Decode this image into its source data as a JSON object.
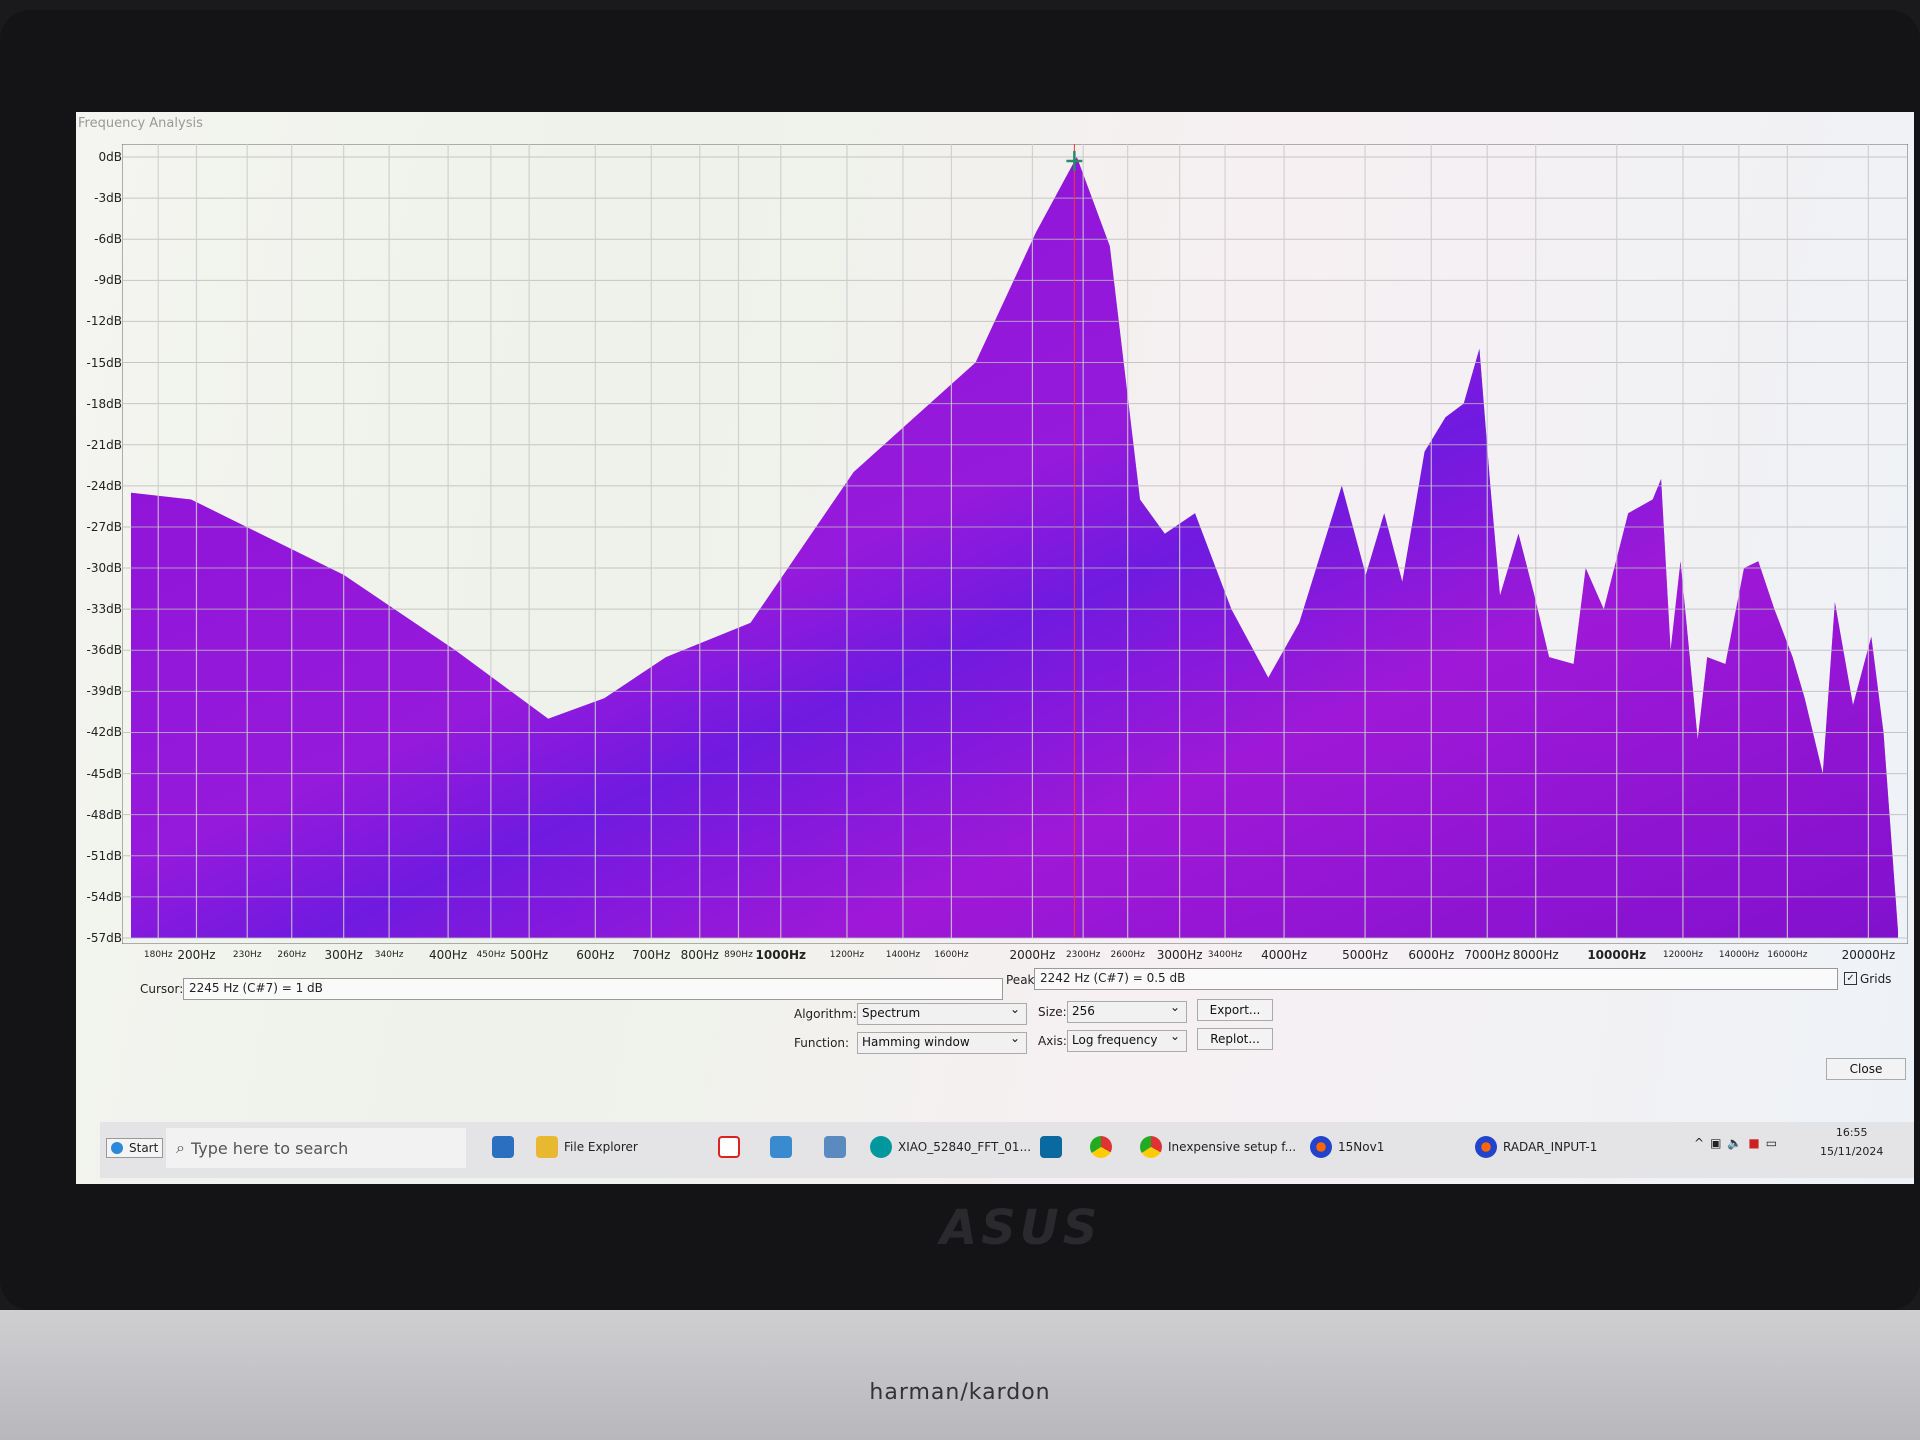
{
  "window": {
    "title": "Frequency Analysis"
  },
  "chart_data": {
    "type": "area",
    "title": "",
    "xlabel": "",
    "ylabel": "",
    "x_scale": "log",
    "xlim": [
      167,
      21700
    ],
    "ylim": [
      -57,
      0
    ],
    "grid": true,
    "fill_color": "#8a12d6",
    "y_ticks": [
      "0dB",
      "-3dB",
      "-6dB",
      "-9dB",
      "-12dB",
      "-15dB",
      "-18dB",
      "-21dB",
      "-24dB",
      "-27dB",
      "-30dB",
      "-33dB",
      "-36dB",
      "-39dB",
      "-42dB",
      "-45dB",
      "-48dB",
      "-51dB",
      "-54dB",
      "-57dB"
    ],
    "x_ticks": [
      {
        "v": 180,
        "l": "180Hz",
        "s": 1
      },
      {
        "v": 200,
        "l": "200Hz"
      },
      {
        "v": 230,
        "l": "230Hz",
        "s": 1
      },
      {
        "v": 260,
        "l": "260Hz",
        "s": 1
      },
      {
        "v": 300,
        "l": "300Hz"
      },
      {
        "v": 340,
        "l": "340Hz",
        "s": 1
      },
      {
        "v": 400,
        "l": "400Hz"
      },
      {
        "v": 450,
        "l": "450Hz",
        "s": 1
      },
      {
        "v": 500,
        "l": "500Hz"
      },
      {
        "v": 600,
        "l": "600Hz"
      },
      {
        "v": 700,
        "l": "700Hz"
      },
      {
        "v": 800,
        "l": "800Hz"
      },
      {
        "v": 890,
        "l": "890Hz",
        "s": 1
      },
      {
        "v": 1000,
        "l": "1000Hz",
        "b": 1
      },
      {
        "v": 1200,
        "l": "1200Hz",
        "s": 1
      },
      {
        "v": 1400,
        "l": "1400Hz",
        "s": 1
      },
      {
        "v": 1600,
        "l": "1600Hz",
        "s": 1
      },
      {
        "v": 2000,
        "l": "2000Hz"
      },
      {
        "v": 2300,
        "l": "2300Hz",
        "s": 1
      },
      {
        "v": 2600,
        "l": "2600Hz",
        "s": 1
      },
      {
        "v": 3000,
        "l": "3000Hz"
      },
      {
        "v": 3400,
        "l": "3400Hz",
        "s": 1
      },
      {
        "v": 4000,
        "l": "4000Hz"
      },
      {
        "v": 5000,
        "l": "5000Hz"
      },
      {
        "v": 6000,
        "l": "6000Hz"
      },
      {
        "v": 7000,
        "l": "7000Hz"
      },
      {
        "v": 8000,
        "l": "8000Hz"
      },
      {
        "v": 10000,
        "l": "10000Hz",
        "b": 1
      },
      {
        "v": 12000,
        "l": "12000Hz",
        "s": 1
      },
      {
        "v": 14000,
        "l": "14000Hz",
        "s": 1
      },
      {
        "v": 16000,
        "l": "16000Hz",
        "s": 1
      },
      {
        "v": 20000,
        "l": "20000Hz"
      }
    ],
    "cursor_hz": 2245,
    "points": [
      [
        167,
        -24.5
      ],
      [
        197,
        -25
      ],
      [
        300,
        -30.5
      ],
      [
        408,
        -36
      ],
      [
        527,
        -41
      ],
      [
        615,
        -39.5
      ],
      [
        729,
        -36.5
      ],
      [
        920,
        -34
      ],
      [
        1222,
        -23
      ],
      [
        1710,
        -15
      ],
      [
        2020,
        -5.5
      ],
      [
        2260,
        0
      ],
      [
        2475,
        -6.5
      ],
      [
        2690,
        -25
      ],
      [
        2880,
        -27.5
      ],
      [
        3130,
        -26
      ],
      [
        3460,
        -33
      ],
      [
        3830,
        -38
      ],
      [
        4170,
        -34
      ],
      [
        4690,
        -24
      ],
      [
        5010,
        -30.5
      ],
      [
        5270,
        -26
      ],
      [
        5540,
        -31
      ],
      [
        5890,
        -21.5
      ],
      [
        6240,
        -19
      ],
      [
        6560,
        -18
      ],
      [
        6850,
        -14
      ],
      [
        7060,
        -24
      ],
      [
        7250,
        -32
      ],
      [
        7630,
        -27.5
      ],
      [
        7970,
        -32
      ],
      [
        8300,
        -36.5
      ],
      [
        8880,
        -37
      ],
      [
        9180,
        -30
      ],
      [
        9650,
        -33
      ],
      [
        10320,
        -26
      ],
      [
        11040,
        -25
      ],
      [
        11300,
        -23.5
      ],
      [
        11600,
        -36
      ],
      [
        11920,
        -29.5
      ],
      [
        12500,
        -42.5
      ],
      [
        12830,
        -36.5
      ],
      [
        13490,
        -37
      ],
      [
        14200,
        -30
      ],
      [
        14770,
        -29.5
      ],
      [
        15440,
        -33
      ],
      [
        16230,
        -36.5
      ],
      [
        16780,
        -39.5
      ],
      [
        17640,
        -45
      ],
      [
        18240,
        -32.5
      ],
      [
        19170,
        -40
      ],
      [
        20160,
        -35
      ],
      [
        20850,
        -42
      ],
      [
        21700,
        -56.5
      ]
    ]
  },
  "readout": {
    "cursor_label": "Cursor:",
    "cursor_value": "2245 Hz (C#7) = 1 dB",
    "peak_label": "Peak:",
    "peak_value": "2242 Hz (C#7) = 0.5 dB",
    "grids_label": "Grids",
    "grids_checked": true
  },
  "controls": {
    "algorithm_label": "Algorithm:",
    "algorithm_value": "Spectrum",
    "function_label": "Function:",
    "function_value": "Hamming window",
    "size_label": "Size:",
    "size_value": "256",
    "axis_label": "Axis:",
    "axis_value": "Log frequency",
    "export": "Export...",
    "replot": "Replot...",
    "close": "Close"
  },
  "taskbar": {
    "start": "Start",
    "search_placeholder": "Type here to search",
    "items": [
      "File Explorer",
      "XIAO_52840_FFT_01...",
      "Inexpensive setup f...",
      "15Nov1",
      "RADAR_INPUT-1"
    ],
    "time": "16:55",
    "date": "15/11/2024"
  },
  "hardware": {
    "logo": "ASUS",
    "speaker_brand": "harman/kardon"
  }
}
